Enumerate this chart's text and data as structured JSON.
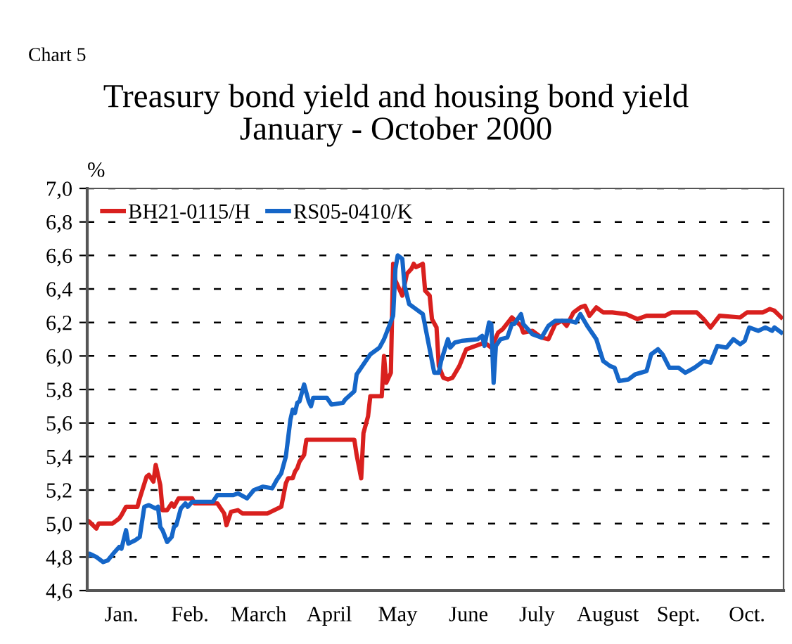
{
  "chart_data": {
    "type": "line",
    "title": "Treasury bond yield and housing bond yield\nJanuary - October 2000",
    "ylabel": "%",
    "annotations": [
      "Chart 5"
    ],
    "xlim": [
      "2000-01-01",
      "2000-11-01"
    ],
    "xticks": [
      {
        "value": "2000-01-16",
        "label": "Jan."
      },
      {
        "value": "2000-02-15",
        "label": "Feb."
      },
      {
        "value": "2000-03-16",
        "label": "March"
      },
      {
        "value": "2000-04-16",
        "label": "April"
      },
      {
        "value": "2000-05-16",
        "label": "May"
      },
      {
        "value": "2000-06-16",
        "label": "June"
      },
      {
        "value": "2000-07-16",
        "label": "July"
      },
      {
        "value": "2000-08-16",
        "label": "August"
      },
      {
        "value": "2000-09-16",
        "label": "Sept."
      },
      {
        "value": "2000-10-16",
        "label": "Oct."
      }
    ],
    "ylim": [
      4.6,
      7.0
    ],
    "yticks": [
      {
        "value": 4.6,
        "label": "4,6"
      },
      {
        "value": 4.8,
        "label": "4,8"
      },
      {
        "value": 5.0,
        "label": "5,0"
      },
      {
        "value": 5.2,
        "label": "5,2"
      },
      {
        "value": 5.4,
        "label": "5,4"
      },
      {
        "value": 5.6,
        "label": "5,6"
      },
      {
        "value": 5.8,
        "label": "5,8"
      },
      {
        "value": 6.0,
        "label": "6,0"
      },
      {
        "value": 6.2,
        "label": "6,2"
      },
      {
        "value": 6.4,
        "label": "6,4"
      },
      {
        "value": 6.6,
        "label": "6,6"
      },
      {
        "value": 6.8,
        "label": "6,8"
      },
      {
        "value": 7.0,
        "label": "7,0"
      }
    ],
    "grid": "y",
    "legend": "top left",
    "marker": "none",
    "line_style": "solid",
    "series": [
      {
        "name": "BH21-0115/H",
        "color": "#d9201e",
        "x": [
          "2000-01-01",
          "2000-01-02",
          "2000-01-05",
          "2000-01-06",
          "2000-01-12",
          "2000-01-15",
          "2000-01-16",
          "2000-01-18",
          "2000-01-23",
          "2000-01-24",
          "2000-01-27",
          "2000-01-28",
          "2000-01-30",
          "2000-01-31",
          "2000-02-02",
          "2000-02-03",
          "2000-02-05",
          "2000-02-07",
          "2000-02-08",
          "2000-02-10",
          "2000-02-16",
          "2000-02-17",
          "2000-02-27",
          "2000-02-29",
          "2000-03-01",
          "2000-03-02",
          "2000-03-04",
          "2000-03-07",
          "2000-03-09",
          "2000-03-20",
          "2000-03-23",
          "2000-03-26",
          "2000-03-28",
          "2000-03-29",
          "2000-03-31",
          "2000-04-01",
          "2000-04-02",
          "2000-04-03",
          "2000-04-05",
          "2000-04-06",
          "2000-04-27",
          "2000-04-28",
          "2000-04-30",
          "2000-05-01",
          "2000-05-03",
          "2000-05-04",
          "2000-05-09",
          "2000-05-10",
          "2000-05-11",
          "2000-05-13",
          "2000-05-14",
          "2000-05-15",
          "2000-05-18",
          "2000-05-20",
          "2000-05-22",
          "2000-05-23",
          "2000-05-24",
          "2000-05-27",
          "2000-05-28",
          "2000-05-30",
          "2000-05-31",
          "2000-06-02",
          "2000-06-03",
          "2000-06-05",
          "2000-06-07",
          "2000-06-09",
          "2000-06-12",
          "2000-06-15",
          "2000-06-19",
          "2000-06-23",
          "2000-06-26",
          "2000-06-29",
          "2000-07-01",
          "2000-07-05",
          "2000-07-09",
          "2000-07-10",
          "2000-07-14",
          "2000-07-18",
          "2000-07-21",
          "2000-07-24",
          "2000-07-27",
          "2000-07-29",
          "2000-08-01",
          "2000-08-04",
          "2000-08-06",
          "2000-08-08",
          "2000-08-11",
          "2000-08-14",
          "2000-08-18",
          "2000-08-24",
          "2000-08-29",
          "2000-09-02",
          "2000-09-10",
          "2000-09-13",
          "2000-09-24",
          "2000-09-27",
          "2000-09-30",
          "2000-10-04",
          "2000-10-13",
          "2000-10-16",
          "2000-10-23",
          "2000-10-26",
          "2000-10-28",
          "2000-10-31"
        ],
        "values": [
          5.02,
          5.01,
          4.97,
          5.0,
          5.0,
          5.03,
          5.05,
          5.1,
          5.1,
          5.15,
          5.28,
          5.29,
          5.25,
          5.35,
          5.23,
          5.08,
          5.08,
          5.12,
          5.1,
          5.15,
          5.15,
          5.12,
          5.12,
          5.08,
          5.06,
          4.99,
          5.07,
          5.08,
          5.06,
          5.06,
          5.08,
          5.1,
          5.24,
          5.27,
          5.27,
          5.31,
          5.33,
          5.37,
          5.41,
          5.5,
          5.5,
          5.41,
          5.27,
          5.54,
          5.64,
          5.76,
          5.76,
          6.0,
          5.84,
          5.9,
          6.55,
          6.45,
          6.36,
          6.49,
          6.52,
          6.55,
          6.53,
          6.55,
          6.39,
          6.36,
          6.22,
          6.17,
          5.94,
          5.87,
          5.86,
          5.87,
          5.94,
          6.04,
          6.06,
          6.08,
          6.05,
          6.14,
          6.16,
          6.23,
          6.18,
          6.14,
          6.15,
          6.11,
          6.1,
          6.19,
          6.21,
          6.18,
          6.26,
          6.29,
          6.3,
          6.24,
          6.29,
          6.26,
          6.26,
          6.25,
          6.22,
          6.24,
          6.24,
          6.26,
          6.26,
          6.22,
          6.17,
          6.24,
          6.23,
          6.26,
          6.26,
          6.28,
          6.27,
          6.23
        ]
      },
      {
        "name": "RS05-0410/K",
        "color": "#1566c8",
        "x": [
          "2000-01-01",
          "2000-01-02",
          "2000-01-05",
          "2000-01-08",
          "2000-01-10",
          "2000-01-13",
          "2000-01-15",
          "2000-01-16",
          "2000-01-18",
          "2000-01-19",
          "2000-01-22",
          "2000-01-24",
          "2000-01-26",
          "2000-01-28",
          "2000-01-31",
          "2000-02-01",
          "2000-02-02",
          "2000-02-03",
          "2000-02-05",
          "2000-02-07",
          "2000-02-08",
          "2000-02-09",
          "2000-02-11",
          "2000-02-13",
          "2000-02-14",
          "2000-02-16",
          "2000-02-19",
          "2000-02-25",
          "2000-02-27",
          "2000-03-05",
          "2000-03-07",
          "2000-03-11",
          "2000-03-14",
          "2000-03-18",
          "2000-03-22",
          "2000-03-24",
          "2000-03-26",
          "2000-03-28",
          "2000-03-30",
          "2000-03-31",
          "2000-04-01",
          "2000-04-02",
          "2000-04-03",
          "2000-04-05",
          "2000-04-07",
          "2000-04-08",
          "2000-04-09",
          "2000-04-15",
          "2000-04-17",
          "2000-04-22",
          "2000-04-23",
          "2000-04-27",
          "2000-04-28",
          "2000-05-01",
          "2000-05-04",
          "2000-05-08",
          "2000-05-10",
          "2000-05-12",
          "2000-05-14",
          "2000-05-15",
          "2000-05-16",
          "2000-05-18",
          "2000-05-19",
          "2000-05-21",
          "2000-05-24",
          "2000-05-27",
          "2000-05-29",
          "2000-05-31",
          "2000-06-01",
          "2000-06-03",
          "2000-06-04",
          "2000-06-07",
          "2000-06-08",
          "2000-06-10",
          "2000-06-13",
          "2000-06-20",
          "2000-06-22",
          "2000-06-23",
          "2000-06-25",
          "2000-06-26",
          "2000-06-27",
          "2000-06-28",
          "2000-06-30",
          "2000-07-03",
          "2000-07-05",
          "2000-07-06",
          "2000-07-09",
          "2000-07-10",
          "2000-07-14",
          "2000-07-18",
          "2000-07-21",
          "2000-07-24",
          "2000-07-30",
          "2000-08-02",
          "2000-08-04",
          "2000-08-07",
          "2000-08-11",
          "2000-08-14",
          "2000-08-17",
          "2000-08-19",
          "2000-08-21",
          "2000-08-25",
          "2000-08-28",
          "2000-09-02",
          "2000-09-04",
          "2000-09-07",
          "2000-09-09",
          "2000-09-12",
          "2000-09-16",
          "2000-09-19",
          "2000-09-23",
          "2000-09-27",
          "2000-09-30",
          "2000-10-03",
          "2000-10-07",
          "2000-10-10",
          "2000-10-13",
          "2000-10-15",
          "2000-10-17",
          "2000-10-21",
          "2000-10-24",
          "2000-10-27",
          "2000-10-28",
          "2000-10-31"
        ],
        "values": [
          4.8,
          4.82,
          4.8,
          4.77,
          4.78,
          4.83,
          4.86,
          4.85,
          4.96,
          4.88,
          4.9,
          4.92,
          5.1,
          5.11,
          5.09,
          5.1,
          4.98,
          4.96,
          4.89,
          4.92,
          4.98,
          4.99,
          5.09,
          5.12,
          5.1,
          5.13,
          5.13,
          5.13,
          5.17,
          5.17,
          5.18,
          5.15,
          5.2,
          5.22,
          5.21,
          5.26,
          5.3,
          5.4,
          5.62,
          5.68,
          5.66,
          5.72,
          5.73,
          5.83,
          5.73,
          5.7,
          5.75,
          5.75,
          5.71,
          5.72,
          5.74,
          5.79,
          5.89,
          5.95,
          6.01,
          6.05,
          6.1,
          6.17,
          6.24,
          6.52,
          6.6,
          6.58,
          6.42,
          6.31,
          6.28,
          6.25,
          6.11,
          5.97,
          5.9,
          5.9,
          5.97,
          6.1,
          6.05,
          6.08,
          6.09,
          6.1,
          6.12,
          6.06,
          6.2,
          6.19,
          5.84,
          6.06,
          6.1,
          6.11,
          6.19,
          6.19,
          6.25,
          6.19,
          6.13,
          6.11,
          6.18,
          6.21,
          6.21,
          6.2,
          6.25,
          6.18,
          6.1,
          5.97,
          5.94,
          5.93,
          5.85,
          5.86,
          5.89,
          5.91,
          6.01,
          6.04,
          6.01,
          5.93,
          5.93,
          5.9,
          5.93,
          5.97,
          5.96,
          6.06,
          6.05,
          6.1,
          6.07,
          6.09,
          6.17,
          6.15,
          6.17,
          6.15,
          6.17,
          6.14
        ]
      }
    ]
  }
}
